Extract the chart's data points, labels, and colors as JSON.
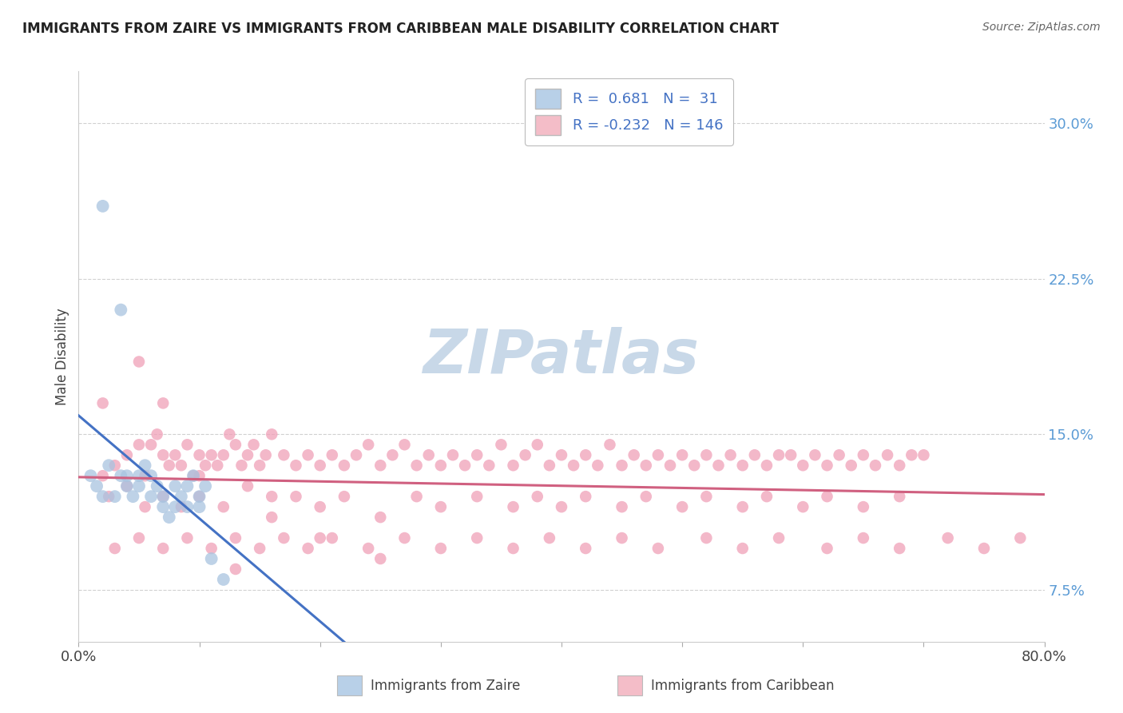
{
  "title": "IMMIGRANTS FROM ZAIRE VS IMMIGRANTS FROM CARIBBEAN MALE DISABILITY CORRELATION CHART",
  "source": "Source: ZipAtlas.com",
  "ylabel": "Male Disability",
  "xlim": [
    0.0,
    80.0
  ],
  "ylim": [
    5.0,
    32.5
  ],
  "y_ticks": [
    7.5,
    15.0,
    22.5,
    30.0
  ],
  "y_tick_labels": [
    "7.5%",
    "15.0%",
    "22.5%",
    "30.0%"
  ],
  "color_blue": "#a8c4e0",
  "color_blue_line": "#4472c4",
  "color_pink": "#f0a0b8",
  "color_pink_line": "#d06080",
  "color_legend_blue_fill": "#b8d0e8",
  "color_legend_pink_fill": "#f4bdc8",
  "watermark": "ZIPatlas",
  "watermark_color": "#c8d8e8",
  "background_color": "#ffffff",
  "grid_color": "#cccccc",
  "zaire_x": [
    1.0,
    1.5,
    2.0,
    2.5,
    3.0,
    3.5,
    4.0,
    4.0,
    4.5,
    5.0,
    5.0,
    5.5,
    6.0,
    6.0,
    6.5,
    7.0,
    7.0,
    7.5,
    8.0,
    8.0,
    8.5,
    9.0,
    9.0,
    9.5,
    10.0,
    10.0,
    10.5,
    11.0,
    12.0,
    2.0,
    3.5
  ],
  "zaire_y": [
    13.0,
    12.5,
    12.0,
    13.5,
    12.0,
    13.0,
    12.5,
    13.0,
    12.0,
    13.0,
    12.5,
    13.5,
    12.0,
    13.0,
    12.5,
    11.5,
    12.0,
    11.0,
    12.5,
    11.5,
    12.0,
    12.5,
    11.5,
    13.0,
    12.0,
    11.5,
    12.5,
    9.0,
    8.0,
    26.0,
    21.0
  ],
  "carib_x": [
    2.0,
    3.0,
    4.0,
    5.0,
    5.5,
    6.0,
    6.5,
    7.0,
    7.5,
    8.0,
    8.5,
    9.0,
    9.5,
    10.0,
    10.5,
    11.0,
    11.5,
    12.0,
    12.5,
    13.0,
    13.5,
    14.0,
    14.5,
    15.0,
    15.5,
    16.0,
    17.0,
    18.0,
    19.0,
    20.0,
    21.0,
    22.0,
    23.0,
    24.0,
    25.0,
    26.0,
    27.0,
    28.0,
    29.0,
    30.0,
    31.0,
    32.0,
    33.0,
    34.0,
    35.0,
    36.0,
    37.0,
    38.0,
    39.0,
    40.0,
    41.0,
    42.0,
    43.0,
    44.0,
    45.0,
    46.0,
    47.0,
    48.0,
    49.0,
    50.0,
    51.0,
    52.0,
    53.0,
    54.0,
    55.0,
    56.0,
    57.0,
    58.0,
    59.0,
    60.0,
    61.0,
    62.0,
    63.0,
    64.0,
    65.0,
    66.0,
    67.0,
    68.0,
    69.0,
    70.0,
    2.5,
    4.0,
    5.5,
    7.0,
    8.5,
    10.0,
    12.0,
    14.0,
    16.0,
    18.0,
    20.0,
    22.0,
    25.0,
    28.0,
    30.0,
    33.0,
    36.0,
    38.0,
    40.0,
    42.0,
    45.0,
    47.0,
    50.0,
    52.0,
    55.0,
    57.0,
    60.0,
    62.0,
    65.0,
    68.0,
    3.0,
    5.0,
    7.0,
    9.0,
    11.0,
    13.0,
    15.0,
    17.0,
    19.0,
    21.0,
    24.0,
    27.0,
    30.0,
    33.0,
    36.0,
    39.0,
    42.0,
    45.0,
    48.0,
    52.0,
    55.0,
    58.0,
    62.0,
    65.0,
    68.0,
    72.0,
    75.0,
    78.0,
    2.0,
    5.0,
    7.0,
    10.0,
    13.0,
    16.0,
    20.0,
    25.0,
    30.0
  ],
  "carib_y": [
    16.5,
    13.5,
    14.0,
    14.5,
    13.0,
    14.5,
    15.0,
    14.0,
    13.5,
    14.0,
    13.5,
    14.5,
    13.0,
    14.0,
    13.5,
    14.0,
    13.5,
    14.0,
    15.0,
    14.5,
    13.5,
    14.0,
    14.5,
    13.5,
    14.0,
    15.0,
    14.0,
    13.5,
    14.0,
    13.5,
    14.0,
    13.5,
    14.0,
    14.5,
    13.5,
    14.0,
    14.5,
    13.5,
    14.0,
    13.5,
    14.0,
    13.5,
    14.0,
    13.5,
    14.5,
    13.5,
    14.0,
    14.5,
    13.5,
    14.0,
    13.5,
    14.0,
    13.5,
    14.5,
    13.5,
    14.0,
    13.5,
    14.0,
    13.5,
    14.0,
    13.5,
    14.0,
    13.5,
    14.0,
    13.5,
    14.0,
    13.5,
    14.0,
    14.0,
    13.5,
    14.0,
    13.5,
    14.0,
    13.5,
    14.0,
    13.5,
    14.0,
    13.5,
    14.0,
    14.0,
    12.0,
    12.5,
    11.5,
    12.0,
    11.5,
    12.0,
    11.5,
    12.5,
    11.0,
    12.0,
    11.5,
    12.0,
    11.0,
    12.0,
    11.5,
    12.0,
    11.5,
    12.0,
    11.5,
    12.0,
    11.5,
    12.0,
    11.5,
    12.0,
    11.5,
    12.0,
    11.5,
    12.0,
    11.5,
    12.0,
    9.5,
    10.0,
    9.5,
    10.0,
    9.5,
    10.0,
    9.5,
    10.0,
    9.5,
    10.0,
    9.5,
    10.0,
    9.5,
    10.0,
    9.5,
    10.0,
    9.5,
    10.0,
    9.5,
    10.0,
    9.5,
    10.0,
    9.5,
    10.0,
    9.5,
    10.0,
    9.5,
    10.0,
    13.0,
    18.5,
    16.5,
    13.0,
    8.5,
    12.0,
    10.0,
    9.0,
    8.5
  ]
}
